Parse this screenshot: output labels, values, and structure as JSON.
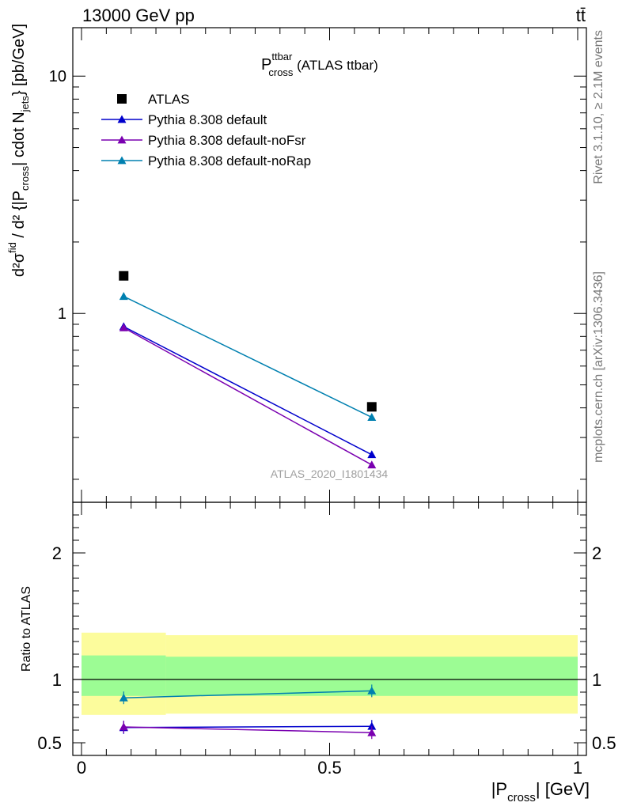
{
  "header": {
    "energy": "13000 GeV pp",
    "process": "tt̄"
  },
  "side_labels": {
    "rivet": "Rivet 3.1.10, ≥ 2.1M events",
    "mcplots": "mcplots.cern.ch [arXiv:1306.3436]"
  },
  "title": {
    "main": "P",
    "sup": "ttbar",
    "sub": "cross",
    "rest": " (ATLAS ttbar)"
  },
  "analysis_id": "ATLAS_2020_I1801434",
  "ylabel_upper": "d²σ^fid / d²{|P_cross| cdot N_jets} [pb/GeV]",
  "ylabel_lower": "Ratio to ATLAS",
  "xlabel": "|P_cross| [GeV]",
  "colors": {
    "data": "#000000",
    "default": "#0000cc",
    "noFsr": "#7a00b0",
    "noRap": "#0080b0",
    "band_inner": "#9cfc94",
    "band_outer": "#fcfc9c"
  },
  "chart_data": [
    {
      "type": "scatter",
      "panel": "main",
      "xlim": [
        0,
        1
      ],
      "ylim": [
        0.16,
        16
      ],
      "yscale": "log",
      "x": [
        0.085,
        0.585
      ],
      "series": [
        {
          "name": "ATLAS",
          "marker": "square",
          "values": [
            1.44,
            0.404
          ]
        },
        {
          "name": "Pythia 8.308 default",
          "marker": "triangle",
          "values": [
            0.88,
            0.254
          ]
        },
        {
          "name": "Pythia 8.308 default-noFsr",
          "marker": "triangle",
          "values": [
            0.87,
            0.23
          ]
        },
        {
          "name": "Pythia 8.308 default-noRap",
          "marker": "triangle",
          "values": [
            1.18,
            0.365
          ]
        }
      ],
      "yticks_labeled": [
        1,
        10
      ],
      "legend_position": "top-left"
    },
    {
      "type": "line",
      "panel": "ratio",
      "xlim": [
        0,
        1
      ],
      "ylim": [
        0.4,
        2.4
      ],
      "x": [
        0.085,
        0.585
      ],
      "series": [
        {
          "name": "Pythia 8.308 default",
          "values": [
            0.62,
            0.63
          ]
        },
        {
          "name": "Pythia 8.308 default-noFsr",
          "values": [
            0.625,
            0.58
          ]
        },
        {
          "name": "Pythia 8.308 default-noRap",
          "values": [
            0.855,
            0.91
          ]
        }
      ],
      "bands": [
        {
          "x_range": [
            0,
            0.17
          ],
          "inner": [
            0.87,
            1.19
          ],
          "outer": [
            0.72,
            1.37
          ]
        },
        {
          "x_range": [
            0.17,
            1.0
          ],
          "inner": [
            0.87,
            1.18
          ],
          "outer": [
            0.73,
            1.35
          ]
        }
      ],
      "yticks_labeled": [
        0.5,
        1,
        2
      ],
      "xticks_labeled": [
        0,
        0.5,
        1
      ]
    }
  ]
}
